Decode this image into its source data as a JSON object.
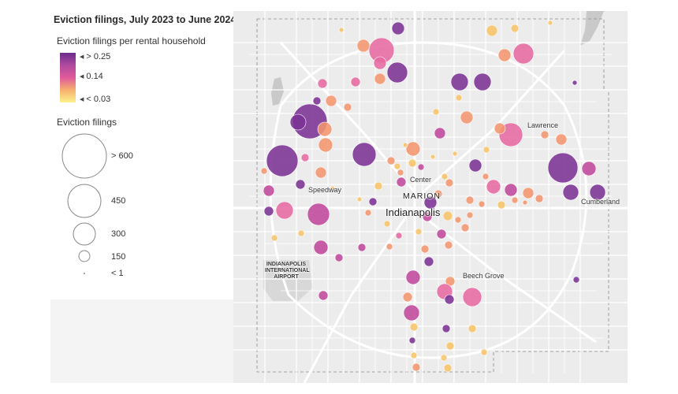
{
  "legend": {
    "title": "Eviction filings, July 2023 to June 2024",
    "rate_title": "Eviction filings per rental household",
    "rate_labels": [
      "> 0.25",
      "0.14",
      "< 0.03"
    ],
    "rate_colors": [
      "#6a2c8c",
      "#e05a9a",
      "#fbf28a"
    ],
    "count_title": "Eviction filings",
    "count_labels": [
      "> 600",
      "450",
      "300",
      "150",
      "< 1"
    ]
  },
  "map": {
    "labels": {
      "lawrence": "Lawrence",
      "speedway": "Speedway",
      "center": "Center",
      "marion": "MARION",
      "indianapolis": "Indianapolis",
      "cumberland": "Cumberland",
      "beech_grove": "Beech Grove",
      "airport_1": "INDIANAPOLIS",
      "airport_2": "INTERNATIONAL",
      "airport_3": "AIRPORT"
    },
    "colors": {
      "land": "#ececec",
      "roads": "#ffffff",
      "water": "#c9c9c9",
      "high": "#7b3294",
      "midhigh": "#c2489c",
      "mid": "#e66aa0",
      "midlow": "#f4956e",
      "low": "#f7c469",
      "lowest": "#f9ec84"
    }
  }
}
